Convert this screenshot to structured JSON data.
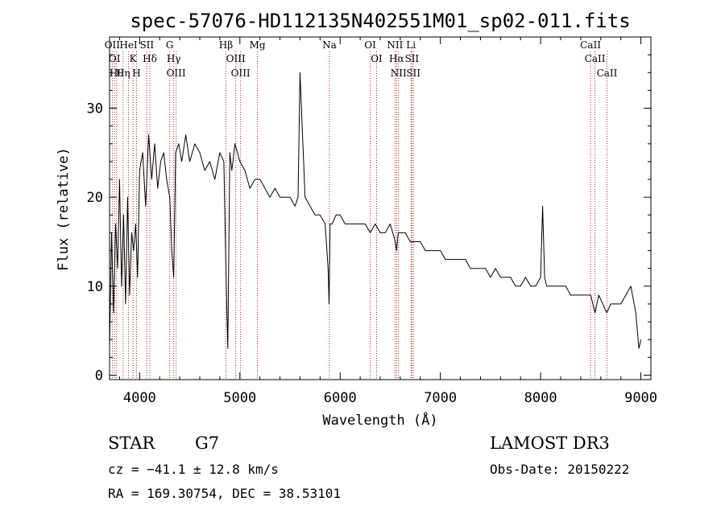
{
  "chart_data": {
    "type": "line",
    "title": "spec-57076-HD112135N402551M01_sp02-011.fits",
    "xlabel": "Wavelength (Å)",
    "ylabel": "Flux (relative)",
    "xlim": [
      3700,
      9100
    ],
    "ylim": [
      -0.5,
      38
    ],
    "xticks": [
      4000,
      5000,
      6000,
      7000,
      8000,
      9000
    ],
    "yticks": [
      0,
      10,
      20,
      30
    ],
    "series": [
      {
        "name": "spectrum",
        "x": [
          3700,
          3720,
          3740,
          3760,
          3780,
          3800,
          3820,
          3840,
          3860,
          3880,
          3900,
          3920,
          3940,
          3960,
          3980,
          4000,
          4030,
          4060,
          4090,
          4120,
          4150,
          4180,
          4210,
          4240,
          4270,
          4300,
          4320,
          4340,
          4360,
          4390,
          4420,
          4460,
          4500,
          4550,
          4600,
          4650,
          4700,
          4750,
          4800,
          4840,
          4860,
          4880,
          4900,
          4920,
          4950,
          5000,
          5050,
          5100,
          5150,
          5200,
          5250,
          5300,
          5350,
          5400,
          5450,
          5500,
          5550,
          5580,
          5600,
          5650,
          5700,
          5750,
          5800,
          5850,
          5880,
          5890,
          5900,
          5920,
          5960,
          6000,
          6050,
          6100,
          6150,
          6200,
          6250,
          6300,
          6350,
          6400,
          6450,
          6500,
          6550,
          6563,
          6580,
          6620,
          6650,
          6700,
          6750,
          6800,
          6850,
          6900,
          6950,
          7000,
          7050,
          7100,
          7150,
          7200,
          7250,
          7300,
          7350,
          7400,
          7450,
          7500,
          7550,
          7600,
          7650,
          7700,
          7750,
          7800,
          7850,
          7900,
          7950,
          8000,
          8020,
          8040,
          8060,
          8100,
          8150,
          8200,
          8250,
          8300,
          8350,
          8400,
          8450,
          8500,
          8542,
          8580,
          8620,
          8660,
          8700,
          8750,
          8800,
          8850,
          8900,
          8950,
          8980,
          9000
        ],
        "y": [
          3,
          16,
          7,
          17,
          12,
          22,
          10,
          18,
          8,
          20,
          9,
          16,
          14,
          17,
          11,
          23,
          25,
          19,
          27,
          22,
          26,
          21,
          24,
          25,
          22,
          20,
          14,
          11,
          25,
          26,
          24,
          27,
          24,
          26,
          25,
          23,
          24,
          22,
          25,
          24,
          12,
          3,
          25,
          23,
          26,
          24,
          23,
          21,
          22,
          22,
          21,
          20,
          21,
          20,
          20,
          20,
          19,
          20,
          34,
          20,
          19,
          18,
          18,
          17,
          12,
          8,
          17,
          17,
          18,
          18,
          17,
          17,
          17,
          17,
          17,
          16,
          17,
          16,
          16,
          17,
          15,
          14,
          16,
          16,
          16,
          15,
          15,
          15,
          14,
          14,
          14,
          14,
          13,
          13,
          13,
          13,
          13,
          12,
          12,
          12,
          12,
          11,
          12,
          11,
          11,
          11,
          10,
          10,
          11,
          10,
          10,
          11,
          19,
          11,
          10,
          10,
          10,
          10,
          10,
          9,
          9,
          9,
          9,
          9,
          7,
          9,
          8,
          7,
          8,
          8,
          8,
          9,
          10,
          7,
          3,
          4
        ]
      }
    ],
    "line_markers": [
      {
        "wave": 3727,
        "labels": [
          "OII"
        ]
      },
      {
        "wave": 3750,
        "labels": [
          "OI"
        ]
      },
      {
        "wave": 3770,
        "labels": [
          "Hθ"
        ]
      },
      {
        "wave": 3835,
        "labels": [
          "Hη"
        ]
      },
      {
        "wave": 3889,
        "labels": [
          "HeI"
        ]
      },
      {
        "wave": 3934,
        "labels": [
          "K"
        ]
      },
      {
        "wave": 3969,
        "labels": [
          "H"
        ]
      },
      {
        "wave": 4072,
        "labels": [
          "SII"
        ]
      },
      {
        "wave": 4102,
        "labels": [
          "Hδ"
        ]
      },
      {
        "wave": 4300,
        "labels": [
          "G"
        ]
      },
      {
        "wave": 4340,
        "labels": [
          "Hγ"
        ]
      },
      {
        "wave": 4364,
        "labels": [
          "OIII"
        ]
      },
      {
        "wave": 4861,
        "labels": [
          "Hβ"
        ]
      },
      {
        "wave": 4959,
        "labels": [
          "OIII"
        ]
      },
      {
        "wave": 5007,
        "labels": [
          "OIII"
        ]
      },
      {
        "wave": 5175,
        "labels": [
          "Mg"
        ]
      },
      {
        "wave": 5893,
        "labels": [
          "Na"
        ]
      },
      {
        "wave": 6300,
        "labels": [
          "OI"
        ]
      },
      {
        "wave": 6364,
        "labels": [
          "OI"
        ]
      },
      {
        "wave": 6548,
        "labels": [
          "NII"
        ]
      },
      {
        "wave": 6563,
        "labels": [
          "Hα"
        ]
      },
      {
        "wave": 6583,
        "labels": [
          "NII"
        ]
      },
      {
        "wave": 6707,
        "labels": [
          "Li"
        ]
      },
      {
        "wave": 6716,
        "labels": [
          "SII"
        ]
      },
      {
        "wave": 6731,
        "labels": [
          "SII"
        ]
      },
      {
        "wave": 8498,
        "labels": [
          "CaII"
        ]
      },
      {
        "wave": 8542,
        "labels": [
          "CaII"
        ]
      },
      {
        "wave": 8662,
        "labels": [
          "CaII"
        ]
      }
    ]
  },
  "info": {
    "object_class": "STAR",
    "subclass": "G7",
    "survey": "LAMOST DR3",
    "cz": "cz = −41.1 ± 12.8 km/s",
    "obs_date": "Obs-Date: 20150222",
    "coords": "RA = 169.30754, DEC =  38.53101"
  },
  "colors": {
    "spectrum": "#000000",
    "marker": "#b22222",
    "frame": "#000000"
  }
}
